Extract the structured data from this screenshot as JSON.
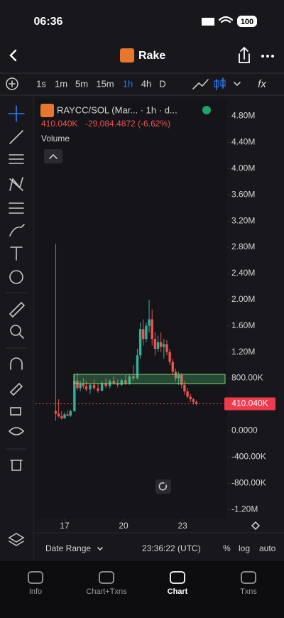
{
  "status_bar": {
    "time": "06:36",
    "battery": "100"
  },
  "header": {
    "title": "Rake"
  },
  "toolbar": {
    "intervals": [
      "1s",
      "1m",
      "5m",
      "15m",
      "1h",
      "4h",
      "D"
    ],
    "active_interval": 4,
    "formula": "fx"
  },
  "chart_data": {
    "type": "candlestick",
    "title": "RAYCC/SOL (Mar... · 1h · d...",
    "change": "-29,084.4872 (-6.62%)",
    "volume_label": "Volume",
    "last_price": {
      "value": 410040,
      "label": "410.040K"
    },
    "up_color": "#2bb39b",
    "down_color": "#ef5350",
    "x": [
      16.55,
      16.7,
      16.85,
      17.0,
      17.15,
      17.3,
      17.5,
      17.65,
      17.8,
      17.95,
      18.1,
      18.3,
      18.5,
      18.7,
      18.9,
      19.1,
      19.3,
      19.5,
      19.7,
      19.9,
      20.1,
      20.3,
      20.5,
      20.7,
      20.85,
      21.0,
      21.15,
      21.3,
      21.45,
      21.6,
      21.75,
      21.9,
      22.05,
      22.2,
      22.35,
      22.5,
      22.65,
      22.8,
      22.95,
      23.1,
      23.25,
      23.4,
      23.55,
      23.7
    ],
    "open": [
      300000,
      260000,
      220000,
      190000,
      250000,
      230000,
      300000,
      760000,
      650000,
      720000,
      680000,
      630000,
      700000,
      650000,
      610000,
      730000,
      680000,
      760000,
      720000,
      700000,
      770000,
      720000,
      830000,
      800000,
      1150000,
      1550000,
      1400000,
      1600000,
      1700000,
      1400000,
      1250000,
      1350000,
      1280000,
      1320000,
      1200000,
      1050000,
      900000,
      800000,
      850000,
      700000,
      600000,
      520000,
      480000,
      440000
    ],
    "high": [
      2850000,
      480000,
      300000,
      280000,
      310000,
      320000,
      850000,
      880000,
      760000,
      800000,
      760000,
      720000,
      780000,
      720000,
      760000,
      800000,
      780000,
      830000,
      780000,
      800000,
      850000,
      860000,
      1000000,
      1250000,
      1650000,
      1700000,
      1650000,
      2000000,
      1850000,
      1500000,
      1450000,
      1500000,
      1400000,
      1380000,
      1250000,
      1100000,
      950000,
      900000,
      880000,
      760000,
      650000,
      560000,
      500000,
      460000
    ],
    "low": [
      150000,
      200000,
      170000,
      180000,
      220000,
      210000,
      290000,
      620000,
      600000,
      640000,
      600000,
      560000,
      620000,
      580000,
      600000,
      650000,
      640000,
      700000,
      660000,
      680000,
      700000,
      700000,
      760000,
      780000,
      1100000,
      1300000,
      1350000,
      1500000,
      1300000,
      1150000,
      1200000,
      1200000,
      1100000,
      1150000,
      1000000,
      850000,
      750000,
      700000,
      650000,
      550000,
      500000,
      440000,
      400000,
      390000
    ],
    "close": [
      260000,
      220000,
      190000,
      250000,
      230000,
      300000,
      760000,
      650000,
      720000,
      680000,
      630000,
      700000,
      650000,
      610000,
      730000,
      680000,
      760000,
      720000,
      700000,
      770000,
      720000,
      830000,
      800000,
      1150000,
      1550000,
      1400000,
      1600000,
      1700000,
      1400000,
      1250000,
      1350000,
      1280000,
      1320000,
      1200000,
      1050000,
      900000,
      800000,
      850000,
      700000,
      600000,
      520000,
      480000,
      440000,
      410040
    ],
    "xlim": [
      15.52,
      25.27
    ],
    "xticks": [
      17,
      20,
      23
    ],
    "ylim": [
      -1340000,
      5000000
    ],
    "yticks": [
      {
        "value": 4800000,
        "label": "4.80M"
      },
      {
        "value": 4400000,
        "label": "4.40M"
      },
      {
        "value": 4000000,
        "label": "4.00M"
      },
      {
        "value": 3600000,
        "label": "3.60M"
      },
      {
        "value": 3200000,
        "label": "3.20M"
      },
      {
        "value": 2800000,
        "label": "2.80M"
      },
      {
        "value": 2400000,
        "label": "2.40M"
      },
      {
        "value": 2000000,
        "label": "2.00M"
      },
      {
        "value": 1600000,
        "label": "1.60M"
      },
      {
        "value": 1200000,
        "label": "1.20M"
      },
      {
        "value": 800000,
        "label": "800.00K"
      },
      {
        "value": 0,
        "label": "0.0000"
      },
      {
        "value": -400000,
        "label": "-400.00K"
      },
      {
        "value": -800000,
        "label": "-800.00K"
      },
      {
        "value": -1200000,
        "label": "-1.20M"
      }
    ]
  },
  "footer": {
    "date_range": "Date Range",
    "time": "23:36:22 (UTC)",
    "percent": "%",
    "log": "log",
    "auto": "auto"
  },
  "tabs": [
    {
      "label": "Info"
    },
    {
      "label": "Chart+Txns"
    },
    {
      "label": "Chart"
    },
    {
      "label": "Txns"
    }
  ],
  "active_tab": 2
}
